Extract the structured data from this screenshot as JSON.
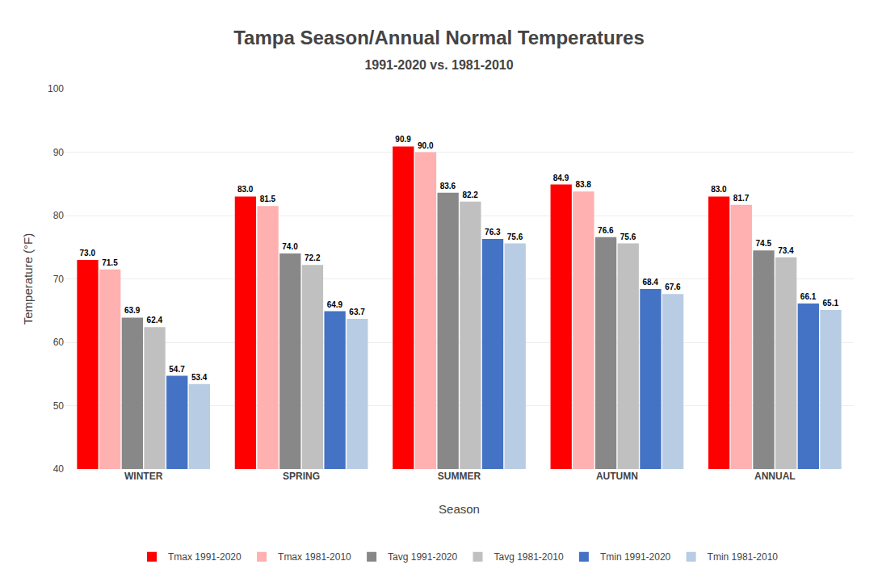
{
  "chart_data": {
    "type": "bar",
    "title": "Tampa Season/Annual Normal Temperatures",
    "subtitle": "1991-2020 vs. 1981-2010",
    "x_label": "Season",
    "y_label": "Temperature (°F)",
    "categories": [
      "WINTER",
      "SPRING",
      "SUMMER",
      "AUTUMN",
      "ANNUAL"
    ],
    "series": [
      {
        "name": "Tmax 1991-2020",
        "color": "#FF0000",
        "values": [
          73.0,
          83.0,
          90.9,
          84.9,
          83.0
        ],
        "value_labels": [
          "73.0",
          "83.0",
          "90.9",
          "84.9",
          "83.0"
        ]
      },
      {
        "name": "Tmax 1981-2010",
        "color": "#FFB0B0",
        "values": [
          71.5,
          81.5,
          90.0,
          83.8,
          81.7
        ],
        "value_labels": [
          "71.5",
          "81.5",
          "90.0",
          "83.8",
          "81.7"
        ]
      },
      {
        "name": "Tavg 1991-2020",
        "color": "#888888",
        "values": [
          63.9,
          74.0,
          83.6,
          76.6,
          74.5
        ],
        "value_labels": [
          "63.9",
          "74.0",
          "83.6",
          "76.6",
          "74.5"
        ]
      },
      {
        "name": "Tavg 1981-2010",
        "color": "#C0C0C0",
        "values": [
          62.4,
          72.2,
          82.2,
          75.6,
          73.4
        ],
        "value_labels": [
          "62.4",
          "72.2",
          "82.2",
          "75.6",
          "73.4"
        ]
      },
      {
        "name": "Tmin 1991-2020",
        "color": "#4472C4",
        "values": [
          54.7,
          64.9,
          76.3,
          68.4,
          66.1
        ],
        "value_labels": [
          "54.7",
          "64.9",
          "76.3",
          "68.4",
          "66.1"
        ]
      },
      {
        "name": "Tmin 1981-2010",
        "color": "#B8CCE4",
        "values": [
          53.4,
          63.7,
          75.6,
          67.6,
          65.1
        ],
        "value_labels": [
          "53.4",
          "63.7",
          "75.6",
          "67.6",
          "65.1"
        ]
      }
    ],
    "ylim": [
      40,
      100
    ],
    "yticks": [
      40,
      50,
      60,
      70,
      80,
      90,
      100
    ],
    "grid": true,
    "legend": "bottom",
    "data_labels": true
  }
}
